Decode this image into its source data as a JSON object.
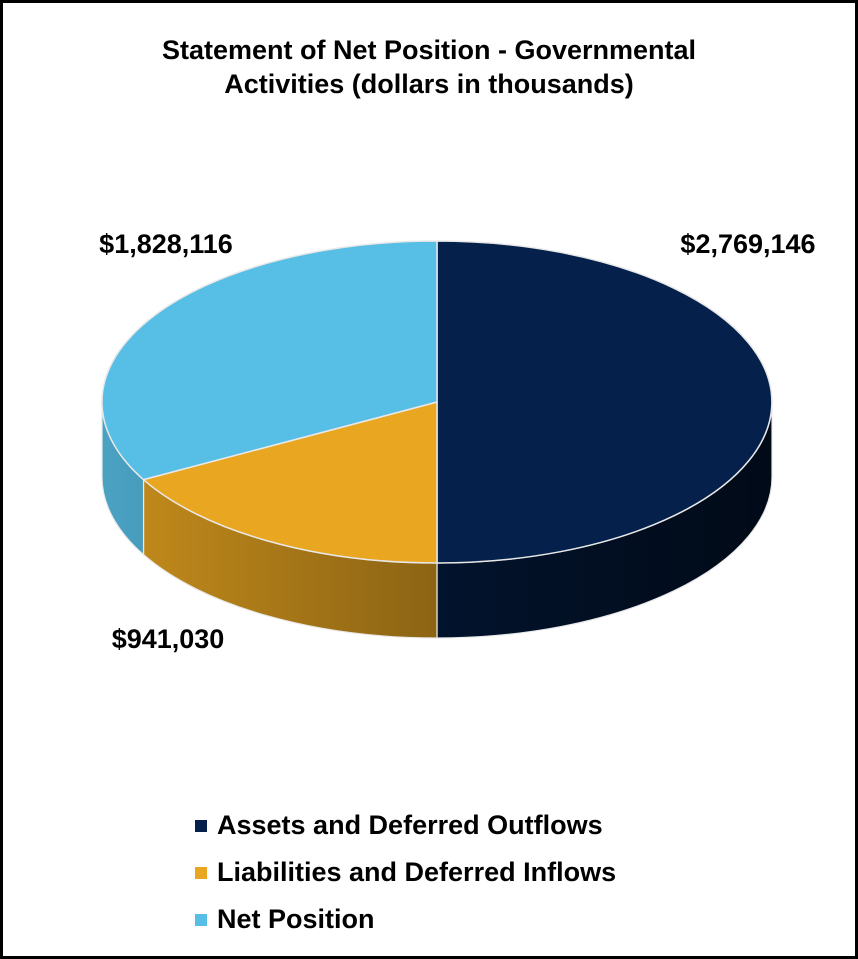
{
  "chart_data": {
    "type": "pie",
    "title_lines": [
      "Statement of Net Position - Governmental",
      "Activities (dollars in thousands)"
    ],
    "slices": [
      {
        "name": "Assets and Deferred Outflows",
        "value": 2769146,
        "label": "$2,769,146",
        "color": "#04204B"
      },
      {
        "name": "Liabilities and Deferred Inflows",
        "value": 941030,
        "label": "$941,030",
        "color": "#E9A621"
      },
      {
        "name": "Net Position",
        "value": 1828116,
        "label": "$1,828,116",
        "color": "#57BEE5"
      }
    ],
    "legend_position": "bottom",
    "style": "3d"
  }
}
